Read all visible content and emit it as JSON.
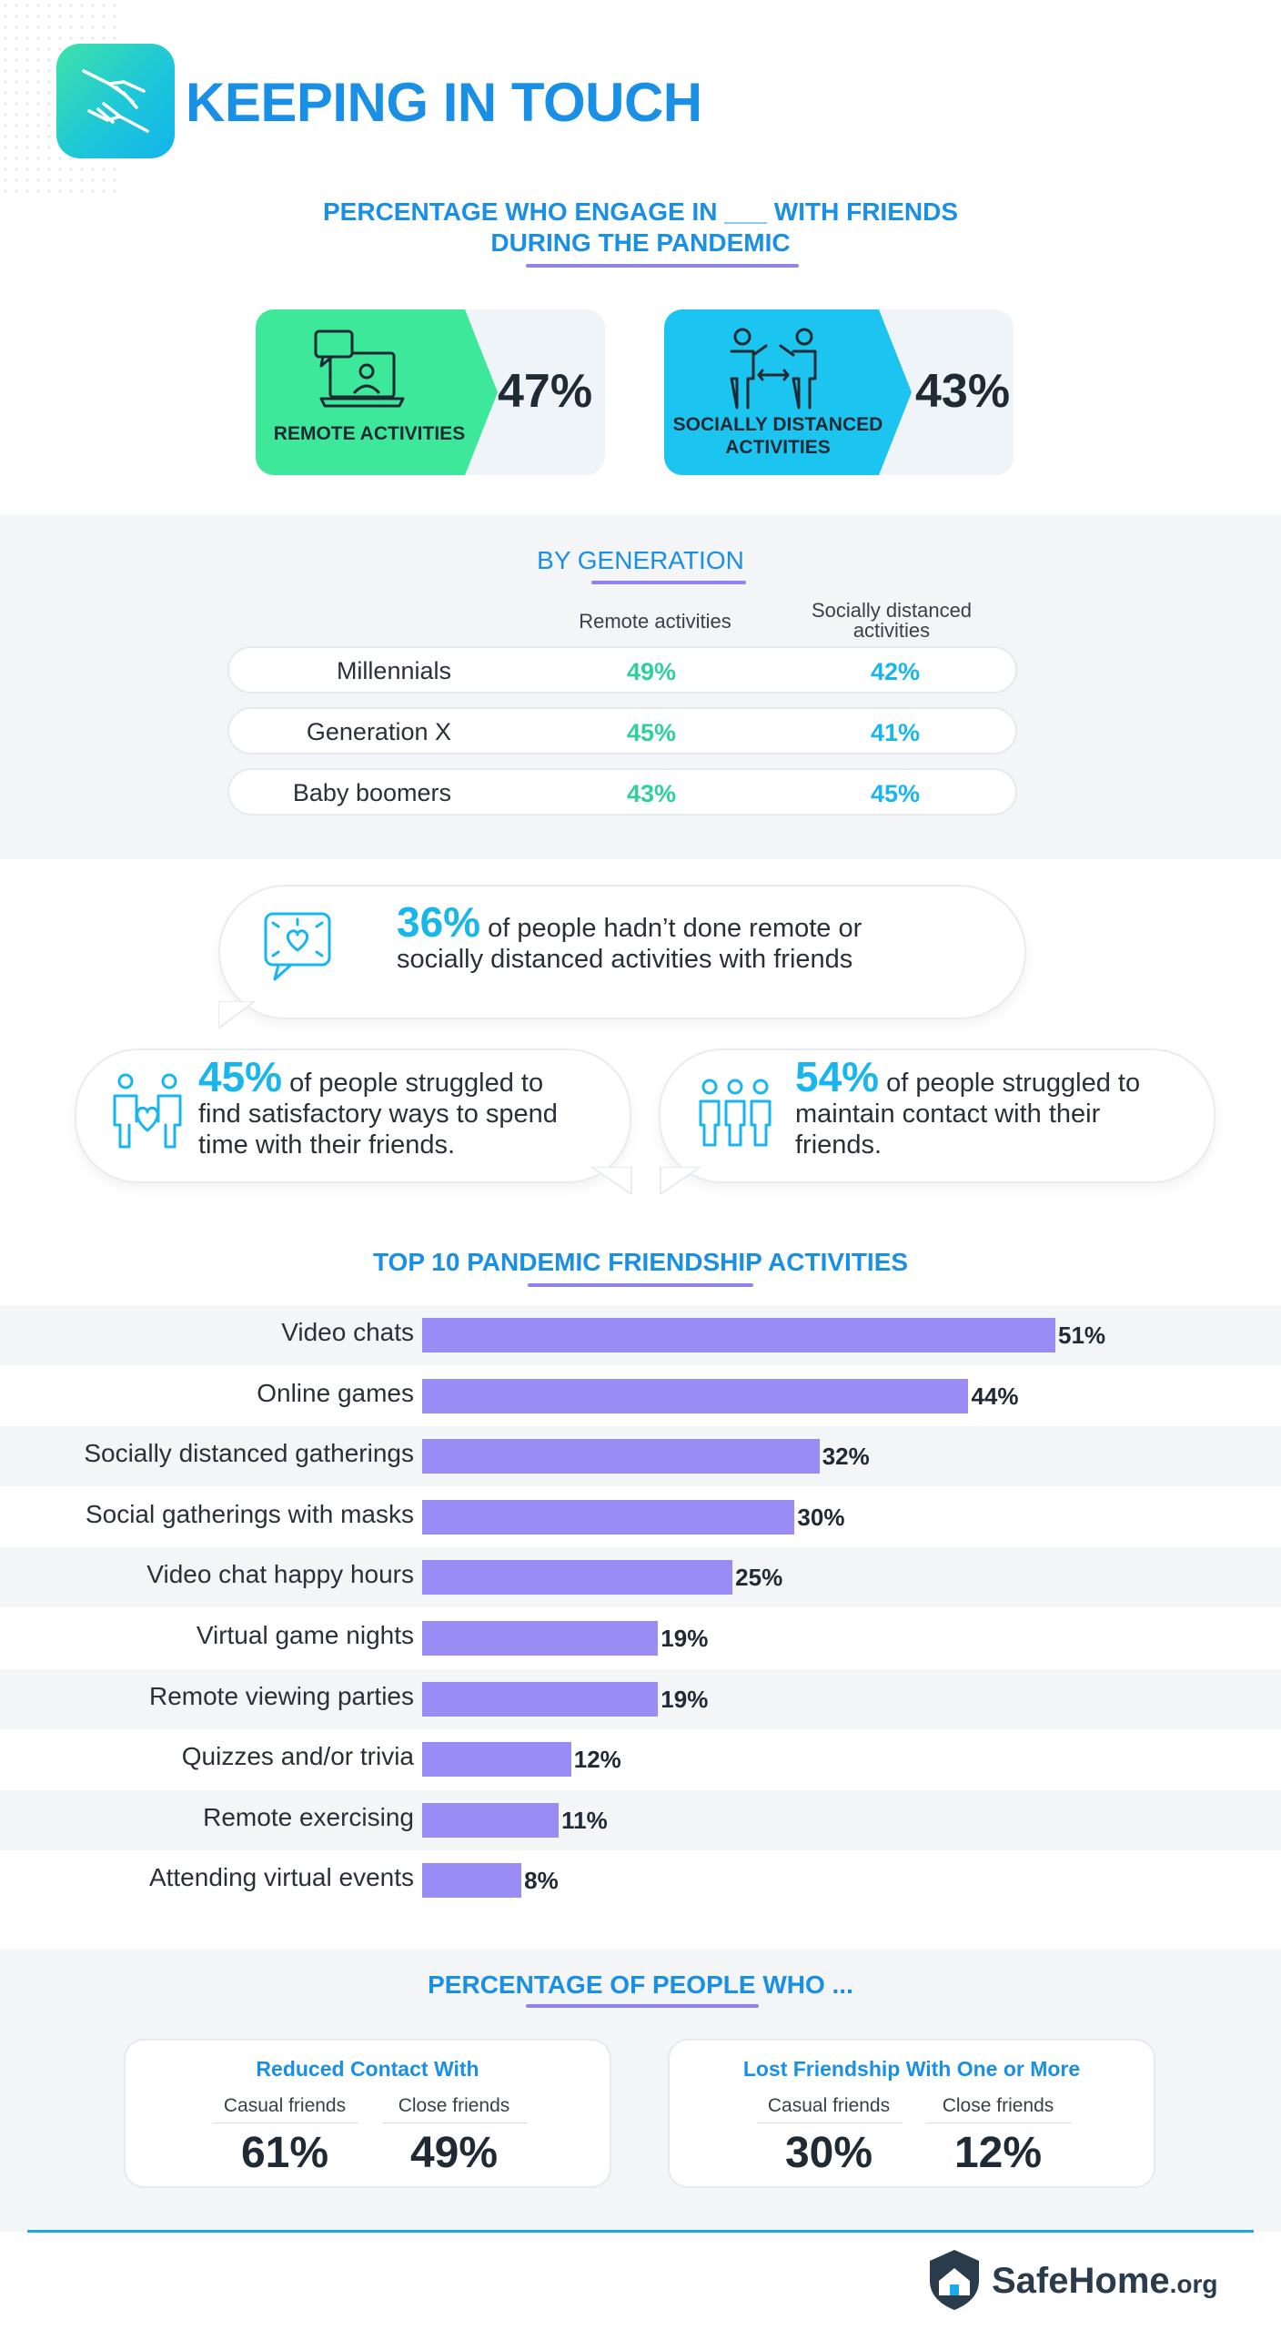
{
  "header": {
    "title": "KEEPING IN TOUCH"
  },
  "engage": {
    "title_line1": "PERCENTAGE WHO ENGAGE IN ___ WITH FRIENDS",
    "title_line2": "DURING THE PANDEMIC",
    "remote": {
      "label": "REMOTE ACTIVITIES",
      "value": "47%",
      "color": "#3ee89a"
    },
    "distanced": {
      "label_line1": "SOCIALLY DISTANCED",
      "label_line2": "ACTIVITIES",
      "value": "43%",
      "color": "#1cc5f0"
    }
  },
  "generation": {
    "title": "BY GENERATION",
    "col1": "Remote activities",
    "col2_line1": "Socially distanced",
    "col2_line2": "activities",
    "rows": [
      {
        "name": "Millennials",
        "remote": "49%",
        "distanced": "42%"
      },
      {
        "name": "Generation X",
        "remote": "45%",
        "distanced": "41%"
      },
      {
        "name": "Baby boomers",
        "remote": "43%",
        "distanced": "45%"
      }
    ],
    "remote_color": "#2fd19a",
    "distanced_color": "#19b6ee"
  },
  "stats": {
    "s1": {
      "pct": "36%",
      "line1": "of people hadn’t done remote or",
      "line2": "socially distanced activities with friends"
    },
    "s2": {
      "pct": "45%",
      "line1": "of people struggled to",
      "line2": "find satisfactory ways to spend",
      "line3": "time with their friends."
    },
    "s3": {
      "pct": "54%",
      "line1": "of people struggled to",
      "line2": "maintain contact with their",
      "line3": "friends."
    }
  },
  "chart_data": {
    "type": "bar",
    "orientation": "horizontal",
    "title": "TOP 10 PANDEMIC FRIENDSHIP ACTIVITIES",
    "categories": [
      "Video chats",
      "Online games",
      "Socially distanced gatherings",
      "Social gatherings with masks",
      "Video chat happy hours",
      "Virtual game nights",
      "Remote viewing parties",
      "Quizzes and/or trivia",
      "Remote exercising",
      "Attending virtual events"
    ],
    "values": [
      51,
      44,
      32,
      30,
      25,
      19,
      19,
      12,
      11,
      8
    ],
    "value_labels": [
      "51%",
      "44%",
      "32%",
      "30%",
      "25%",
      "19%",
      "19%",
      "12%",
      "11%",
      "8%"
    ],
    "xlim": [
      0,
      51
    ],
    "bar_color": "#9a8cf5",
    "grid": false
  },
  "people": {
    "title": "PERCENTAGE OF PEOPLE WHO ...",
    "reduced": {
      "title": "Reduced Contact With",
      "casual_label": "Casual friends",
      "casual": "61%",
      "close_label": "Close friends",
      "close": "49%"
    },
    "lost": {
      "title": "Lost Friendship With One or More",
      "casual_label": "Casual friends",
      "casual": "30%",
      "close_label": "Close friends",
      "close": "12%"
    }
  },
  "footer": {
    "brand": "SafeHome",
    "tld": ".org"
  }
}
